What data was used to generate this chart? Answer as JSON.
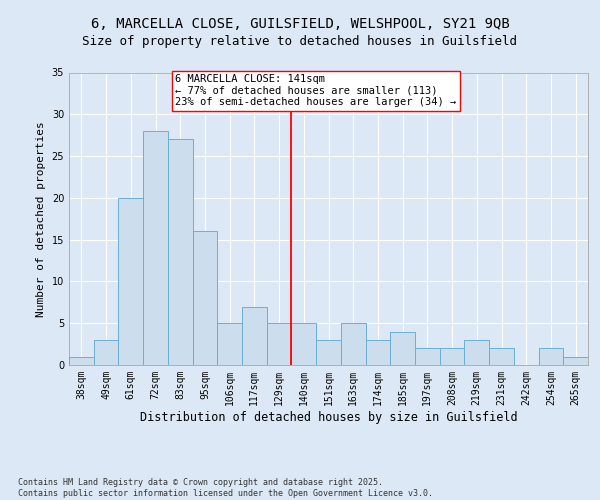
{
  "title_line1": "6, MARCELLA CLOSE, GUILSFIELD, WELSHPOOL, SY21 9QB",
  "title_line2": "Size of property relative to detached houses in Guilsfield",
  "xlabel": "Distribution of detached houses by size in Guilsfield",
  "ylabel": "Number of detached properties",
  "footnote": "Contains HM Land Registry data © Crown copyright and database right 2025.\nContains public sector information licensed under the Open Government Licence v3.0.",
  "bin_labels": [
    "38sqm",
    "49sqm",
    "61sqm",
    "72sqm",
    "83sqm",
    "95sqm",
    "106sqm",
    "117sqm",
    "129sqm",
    "140sqm",
    "151sqm",
    "163sqm",
    "174sqm",
    "185sqm",
    "197sqm",
    "208sqm",
    "219sqm",
    "231sqm",
    "242sqm",
    "254sqm",
    "265sqm"
  ],
  "bar_heights": [
    1,
    3,
    20,
    28,
    27,
    16,
    5,
    7,
    5,
    5,
    3,
    5,
    3,
    4,
    2,
    2,
    3,
    2,
    0,
    2,
    1
  ],
  "bar_color": "#ccdded",
  "bar_edge_color": "#6aaed6",
  "red_line_index": 9,
  "annotation_line1": "6 MARCELLA CLOSE: 141sqm",
  "annotation_line2": "← 77% of detached houses are smaller (113)",
  "annotation_line3": "23% of semi-detached houses are larger (34) →",
  "ylim": [
    0,
    35
  ],
  "yticks": [
    0,
    5,
    10,
    15,
    20,
    25,
    30,
    35
  ],
  "bg_color": "#dce8f5",
  "plot_bg_color": "#dce8f5",
  "grid_color": "#ffffff",
  "title_fontsize": 10,
  "subtitle_fontsize": 9,
  "axis_label_fontsize": 8.5,
  "ylabel_fontsize": 8,
  "tick_fontsize": 7,
  "annot_fontsize": 7.5,
  "footnote_fontsize": 6
}
